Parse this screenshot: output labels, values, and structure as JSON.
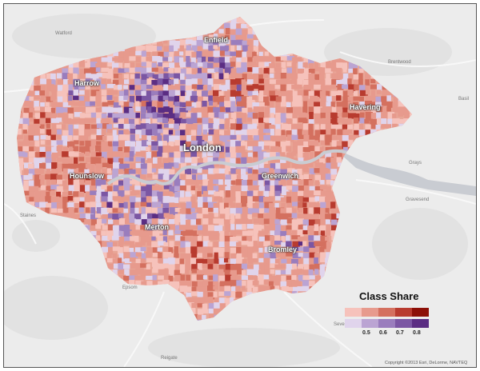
{
  "map": {
    "city_label": "London",
    "boroughs": [
      "Enfield",
      "Harrow",
      "Havering",
      "Hounslow",
      "Greenwich",
      "Merton",
      "Bromley"
    ],
    "places": [
      "Watford",
      "Brentwood",
      "Basil",
      "Grays",
      "Gravesend",
      "Staines",
      "Epsom",
      "Reigate",
      "Sevenoaks"
    ],
    "copyright": "Copyright ©2013 Esri, DeLorme, NAVTEQ"
  },
  "legend": {
    "title": "Class Share",
    "red_colors": [
      "#f6c2bb",
      "#e79a8d",
      "#d4705f",
      "#b83b2f",
      "#8c0f07"
    ],
    "purple_colors": [
      "#e0d4ec",
      "#bba4d3",
      "#9a7dbd",
      "#7b56a3",
      "#5b2d83"
    ],
    "ticks": [
      "0.5",
      "0.6",
      "0.7",
      "0.8"
    ]
  },
  "colors": {
    "background": "#ececec",
    "thames": "#c9ccd2"
  }
}
